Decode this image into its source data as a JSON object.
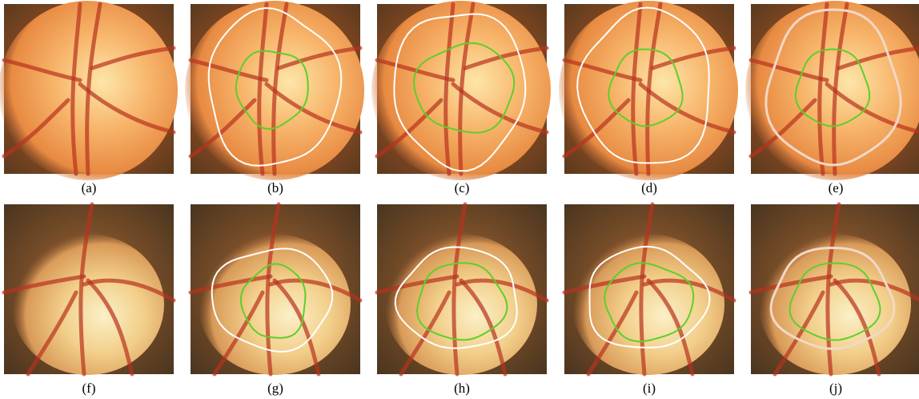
{
  "captions": [
    "(a)",
    "(b)",
    "(c)",
    "(d)",
    "(e)",
    "(f)",
    "(g)",
    "(h)",
    "(i)",
    "(j)"
  ]
}
